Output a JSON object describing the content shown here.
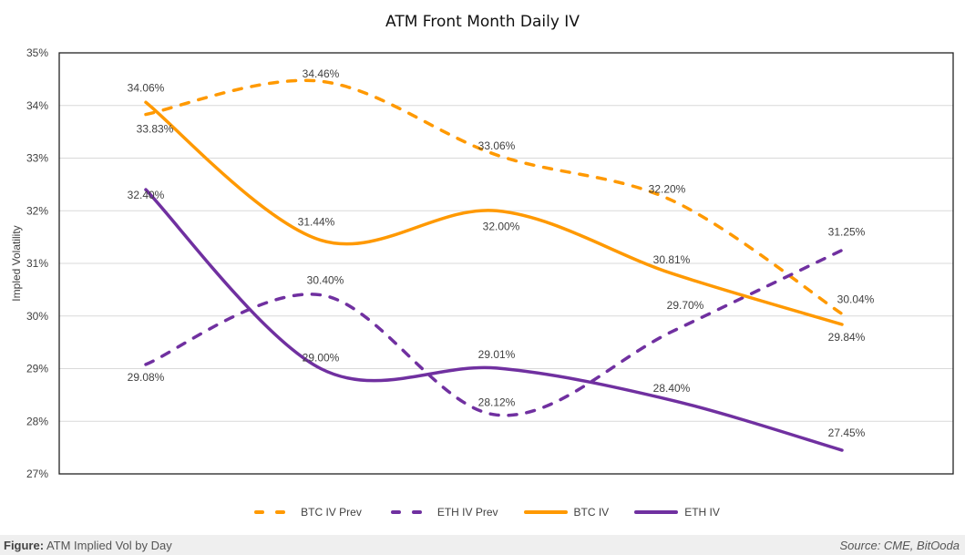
{
  "chart_data": {
    "type": "line",
    "title": "ATM Front Month Daily IV",
    "xlabel": "",
    "ylabel": "Impled Volatility",
    "ylim": [
      27,
      35
    ],
    "yticks": [
      "27%",
      "28%",
      "29%",
      "30%",
      "31%",
      "32%",
      "33%",
      "34%",
      "35%"
    ],
    "ytick_values": [
      27,
      28,
      29,
      30,
      31,
      32,
      33,
      34,
      35
    ],
    "x": [
      1,
      2,
      3,
      4,
      5
    ],
    "grid": true,
    "smooth": true,
    "legend_position": "bottom",
    "series": [
      {
        "name": "BTC IV Prev",
        "color": "#FF9900",
        "dash": true,
        "values": [
          33.83,
          34.46,
          33.06,
          32.2,
          30.04
        ],
        "labels": [
          "33.83%",
          "34.46%",
          "33.06%",
          "32.20%",
          "30.04%"
        ]
      },
      {
        "name": "ETH IV Prev",
        "color": "#7030A0",
        "dash": true,
        "values": [
          29.08,
          30.4,
          28.12,
          29.7,
          31.25
        ],
        "labels": [
          "29.08%",
          "30.40%",
          "28.12%",
          "29.70%",
          "31.25%"
        ]
      },
      {
        "name": "BTC IV",
        "color": "#FF9900",
        "dash": false,
        "values": [
          34.06,
          31.44,
          32.0,
          30.81,
          29.84
        ],
        "labels": [
          "34.06%",
          "31.44%",
          "32.00%",
          "30.81%",
          "29.84%"
        ]
      },
      {
        "name": "ETH IV",
        "color": "#7030A0",
        "dash": false,
        "values": [
          32.4,
          29.0,
          29.01,
          28.4,
          27.45
        ],
        "labels": [
          "32.40%",
          "29.00%",
          "29.01%",
          "28.40%",
          "27.45%"
        ]
      }
    ]
  },
  "footer": {
    "figure_label": "Figure:",
    "figure_text": "ATM Implied Vol by Day",
    "source": "Source: CME, BitOoda"
  }
}
